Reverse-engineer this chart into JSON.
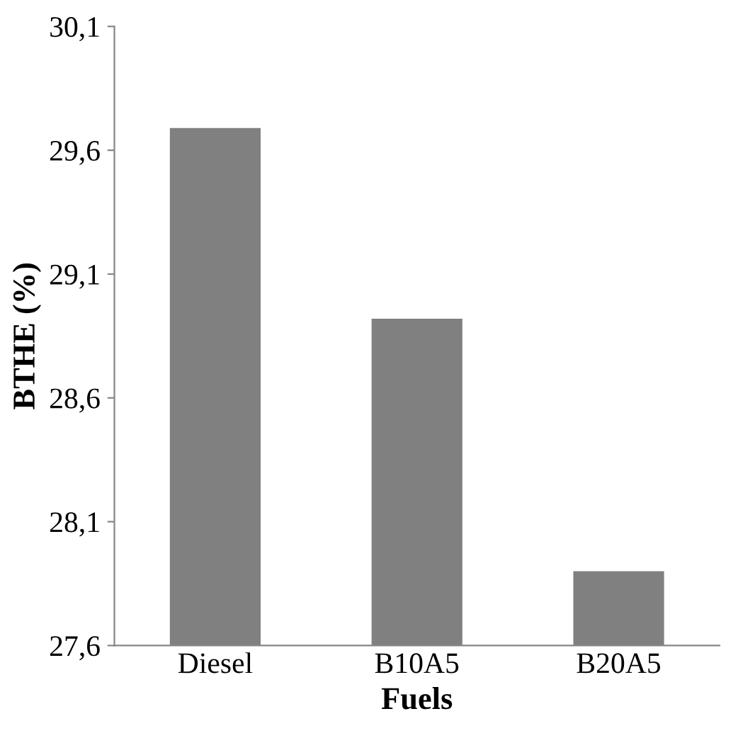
{
  "chart_data": {
    "type": "bar",
    "xlabel": "Fuels",
    "ylabel": "BTHE (%)",
    "categories": [
      "Diesel",
      "B10A5",
      "B20A5"
    ],
    "values": [
      29.69,
      28.92,
      27.9
    ],
    "color": "#808080",
    "ylim": [
      27.6,
      30.1
    ],
    "yticks": [
      {
        "value": 27.6,
        "label": "27,6"
      },
      {
        "value": 28.1,
        "label": "28,1"
      },
      {
        "value": 28.6,
        "label": "28,6"
      },
      {
        "value": 29.1,
        "label": "29,1"
      },
      {
        "value": 29.6,
        "label": "29,6"
      },
      {
        "value": 30.1,
        "label": "30,1"
      }
    ],
    "grid": false,
    "legend": false
  }
}
